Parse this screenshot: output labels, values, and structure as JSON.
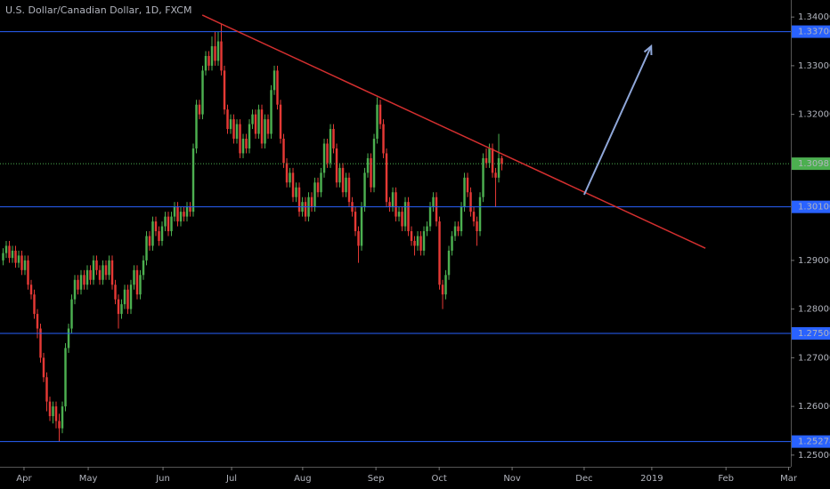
{
  "chart_data": {
    "type": "candlestick",
    "title": "U.S. Dollar/Canadian Dollar, 1D, FXCM",
    "up_color": "#4caf50",
    "down_color": "#e53935",
    "xlim": [
      -1,
      252.7
    ],
    "ylim": [
      1.2476,
      1.3435
    ],
    "xticks": [
      {
        "value": 6.7,
        "label": "Apr"
      },
      {
        "value": 27.3,
        "label": "May"
      },
      {
        "value": 51.3,
        "label": "Jun"
      },
      {
        "value": 73.3,
        "label": "Jul"
      },
      {
        "value": 96.1,
        "label": "Aug"
      },
      {
        "value": 119.6,
        "label": "Sep"
      },
      {
        "value": 139.9,
        "label": "Oct"
      },
      {
        "value": 163.3,
        "label": "Nov"
      },
      {
        "value": 186.4,
        "label": "Dec"
      },
      {
        "value": 208.1,
        "label": "2019"
      },
      {
        "value": 231.9,
        "label": "Feb"
      },
      {
        "value": 252.0,
        "label": "Mar"
      }
    ],
    "yticks": [
      {
        "value": 1.34,
        "label": "1.34000"
      },
      {
        "value": 1.33,
        "label": "1.33000"
      },
      {
        "value": 1.32,
        "label": "1.32000"
      },
      {
        "value": 1.29,
        "label": "1.29000"
      },
      {
        "value": 1.28,
        "label": "1.28000"
      },
      {
        "value": 1.27,
        "label": "1.27000"
      },
      {
        "value": 1.26,
        "label": "1.26000"
      },
      {
        "value": 1.25,
        "label": "1.25000"
      }
    ],
    "levels": [
      {
        "value": 1.337,
        "label": "1.33700",
        "color": "#2962ff",
        "style": "solid"
      },
      {
        "value": 1.30987,
        "label": "1.30987",
        "color": "#4caf50",
        "style": "dotted"
      },
      {
        "value": 1.301,
        "label": "1.30100",
        "color": "#2962ff",
        "style": "solid"
      },
      {
        "value": 1.275,
        "label": "1.27500",
        "color": "#2962ff",
        "style": "solid"
      },
      {
        "value": 1.25278,
        "label": "1.25278",
        "color": "#2962ff",
        "style": "solid"
      }
    ],
    "trendline": {
      "x": [
        63.9,
        225.3
      ],
      "y": [
        1.3404,
        1.2925
      ],
      "color": "#d32f2f"
    },
    "arrow": {
      "x": [
        186.4,
        207.9
      ],
      "y": [
        1.3035,
        1.334
      ],
      "color": "#8fa7d9"
    },
    "open": [
      1.29,
      1.2915,
      1.293,
      1.2905,
      1.292,
      1.2895,
      1.291,
      1.288,
      1.29,
      1.285,
      1.283,
      1.279,
      1.276,
      1.27,
      1.266,
      1.261,
      1.258,
      1.26,
      1.257,
      1.2555,
      1.26,
      1.272,
      1.276,
      1.282,
      1.286,
      1.284,
      1.287,
      1.285,
      1.288,
      1.286,
      1.29,
      1.288,
      1.286,
      1.289,
      1.287,
      1.29,
      1.285,
      1.282,
      1.279,
      1.281,
      1.284,
      1.28,
      1.285,
      1.288,
      1.283,
      1.287,
      1.29,
      1.295,
      1.293,
      1.298,
      1.296,
      1.294,
      1.297,
      1.299,
      1.296,
      1.299,
      1.301,
      1.298,
      1.3,
      1.299,
      1.301,
      1.3,
      1.313,
      1.322,
      1.32,
      1.329,
      1.332,
      1.33,
      1.334,
      1.331,
      1.335,
      1.329,
      1.321,
      1.317,
      1.319,
      1.315,
      1.318,
      1.312,
      1.315,
      1.313,
      1.318,
      1.32,
      1.316,
      1.321,
      1.314,
      1.319,
      1.316,
      1.325,
      1.329,
      1.322,
      1.315,
      1.31,
      1.306,
      1.308,
      1.303,
      1.305,
      1.3,
      1.302,
      1.299,
      1.303,
      1.301,
      1.306,
      1.304,
      1.308,
      1.314,
      1.31,
      1.317,
      1.313,
      1.306,
      1.309,
      1.304,
      1.307,
      1.302,
      1.3,
      1.296,
      1.293,
      1.301,
      1.308,
      1.311,
      1.305,
      1.315,
      1.322,
      1.318,
      1.312,
      1.302,
      1.301,
      1.304,
      1.299,
      1.3,
      1.297,
      1.302,
      1.296,
      1.294,
      1.293,
      1.295,
      1.292,
      1.296,
      1.297,
      1.301,
      1.303,
      1.298,
      1.285,
      1.283,
      1.287,
      1.292,
      1.295,
      1.297,
      1.296,
      1.301,
      1.307,
      1.304,
      1.3,
      1.298,
      1.296,
      1.303,
      1.311,
      1.31,
      1.313,
      1.308,
      1.307,
      1.311
    ],
    "high": [
      1.2925,
      1.294,
      1.294,
      1.293,
      1.293,
      1.292,
      1.292,
      1.291,
      1.291,
      1.286,
      1.284,
      1.28,
      1.277,
      1.271,
      1.267,
      1.262,
      1.261,
      1.261,
      1.2585,
      1.261,
      1.273,
      1.277,
      1.283,
      1.287,
      1.287,
      1.288,
      1.288,
      1.289,
      1.289,
      1.291,
      1.291,
      1.289,
      1.29,
      1.29,
      1.291,
      1.291,
      1.286,
      1.283,
      1.282,
      1.285,
      1.285,
      1.286,
      1.289,
      1.289,
      1.288,
      1.291,
      1.296,
      1.296,
      1.299,
      1.299,
      1.297,
      1.298,
      1.3,
      1.3,
      1.3,
      1.302,
      1.302,
      1.301,
      1.301,
      1.302,
      1.302,
      1.314,
      1.323,
      1.323,
      1.33,
      1.333,
      1.333,
      1.336,
      1.337,
      1.337,
      1.3385,
      1.33,
      1.322,
      1.32,
      1.32,
      1.319,
      1.319,
      1.316,
      1.316,
      1.319,
      1.321,
      1.321,
      1.322,
      1.322,
      1.32,
      1.32,
      1.326,
      1.33,
      1.33,
      1.323,
      1.316,
      1.311,
      1.309,
      1.309,
      1.306,
      1.306,
      1.303,
      1.303,
      1.304,
      1.304,
      1.307,
      1.307,
      1.309,
      1.315,
      1.315,
      1.318,
      1.318,
      1.314,
      1.31,
      1.31,
      1.308,
      1.308,
      1.303,
      1.301,
      1.297,
      1.302,
      1.309,
      1.312,
      1.312,
      1.316,
      1.3235,
      1.323,
      1.319,
      1.313,
      1.303,
      1.305,
      1.305,
      1.301,
      1.301,
      1.303,
      1.303,
      1.297,
      1.295,
      1.296,
      1.296,
      1.297,
      1.298,
      1.302,
      1.304,
      1.304,
      1.299,
      1.286,
      1.288,
      1.293,
      1.296,
      1.298,
      1.298,
      1.302,
      1.308,
      1.308,
      1.305,
      1.301,
      1.299,
      1.304,
      1.312,
      1.313,
      1.314,
      1.314,
      1.309,
      1.316,
      1.3115
    ],
    "low": [
      1.289,
      1.2905,
      1.2895,
      1.2895,
      1.2885,
      1.2885,
      1.287,
      1.287,
      1.284,
      1.282,
      1.278,
      1.274,
      1.269,
      1.265,
      1.259,
      1.257,
      1.2565,
      1.2555,
      1.2528,
      1.2545,
      1.259,
      1.271,
      1.275,
      1.281,
      1.283,
      1.283,
      1.284,
      1.284,
      1.285,
      1.285,
      1.287,
      1.285,
      1.285,
      1.286,
      1.286,
      1.284,
      1.281,
      1.276,
      1.278,
      1.28,
      1.279,
      1.279,
      1.284,
      1.282,
      1.282,
      1.286,
      1.289,
      1.292,
      1.292,
      1.295,
      1.293,
      1.293,
      1.296,
      1.295,
      1.295,
      1.298,
      1.297,
      1.297,
      1.298,
      1.298,
      1.299,
      1.299,
      1.312,
      1.319,
      1.319,
      1.328,
      1.329,
      1.329,
      1.33,
      1.33,
      1.328,
      1.32,
      1.316,
      1.316,
      1.314,
      1.314,
      1.311,
      1.311,
      1.312,
      1.312,
      1.317,
      1.315,
      1.315,
      1.313,
      1.313,
      1.315,
      1.315,
      1.324,
      1.321,
      1.314,
      1.309,
      1.305,
      1.305,
      1.302,
      1.302,
      1.299,
      1.299,
      1.298,
      1.298,
      1.3,
      1.3,
      1.303,
      1.303,
      1.307,
      1.309,
      1.309,
      1.312,
      1.305,
      1.305,
      1.303,
      1.303,
      1.301,
      1.299,
      1.295,
      1.2895,
      1.292,
      1.3,
      1.307,
      1.304,
      1.304,
      1.314,
      1.317,
      1.311,
      1.301,
      1.3,
      1.3,
      1.298,
      1.298,
      1.296,
      1.296,
      1.295,
      1.293,
      1.291,
      1.292,
      1.291,
      1.291,
      1.295,
      1.296,
      1.3,
      1.297,
      1.284,
      1.28,
      1.282,
      1.286,
      1.291,
      1.294,
      1.295,
      1.295,
      1.3,
      1.303,
      1.299,
      1.297,
      1.293,
      1.295,
      1.302,
      1.309,
      1.309,
      1.307,
      1.301,
      1.306,
      1.3085
    ],
    "close": [
      1.2915,
      1.293,
      1.2905,
      1.292,
      1.2895,
      1.291,
      1.288,
      1.29,
      1.285,
      1.283,
      1.279,
      1.276,
      1.27,
      1.266,
      1.261,
      1.258,
      1.26,
      1.257,
      1.2555,
      1.26,
      1.272,
      1.276,
      1.282,
      1.286,
      1.284,
      1.287,
      1.285,
      1.288,
      1.286,
      1.29,
      1.288,
      1.286,
      1.289,
      1.287,
      1.29,
      1.285,
      1.282,
      1.279,
      1.281,
      1.284,
      1.28,
      1.285,
      1.288,
      1.283,
      1.287,
      1.29,
      1.295,
      1.293,
      1.298,
      1.296,
      1.294,
      1.297,
      1.299,
      1.296,
      1.299,
      1.301,
      1.298,
      1.3,
      1.299,
      1.301,
      1.3,
      1.313,
      1.322,
      1.32,
      1.329,
      1.332,
      1.33,
      1.334,
      1.331,
      1.335,
      1.329,
      1.321,
      1.317,
      1.319,
      1.315,
      1.318,
      1.312,
      1.315,
      1.313,
      1.318,
      1.32,
      1.316,
      1.321,
      1.314,
      1.319,
      1.316,
      1.325,
      1.329,
      1.322,
      1.315,
      1.31,
      1.306,
      1.308,
      1.303,
      1.305,
      1.3,
      1.302,
      1.299,
      1.303,
      1.301,
      1.306,
      1.304,
      1.308,
      1.314,
      1.31,
      1.317,
      1.313,
      1.306,
      1.309,
      1.304,
      1.307,
      1.302,
      1.3,
      1.296,
      1.293,
      1.301,
      1.308,
      1.311,
      1.305,
      1.315,
      1.322,
      1.318,
      1.312,
      1.302,
      1.301,
      1.304,
      1.299,
      1.3,
      1.297,
      1.302,
      1.296,
      1.294,
      1.293,
      1.295,
      1.292,
      1.296,
      1.297,
      1.301,
      1.303,
      1.298,
      1.285,
      1.283,
      1.287,
      1.292,
      1.295,
      1.297,
      1.296,
      1.301,
      1.307,
      1.304,
      1.3,
      1.298,
      1.296,
      1.303,
      1.311,
      1.31,
      1.313,
      1.308,
      1.307,
      1.311,
      1.3099
    ]
  }
}
